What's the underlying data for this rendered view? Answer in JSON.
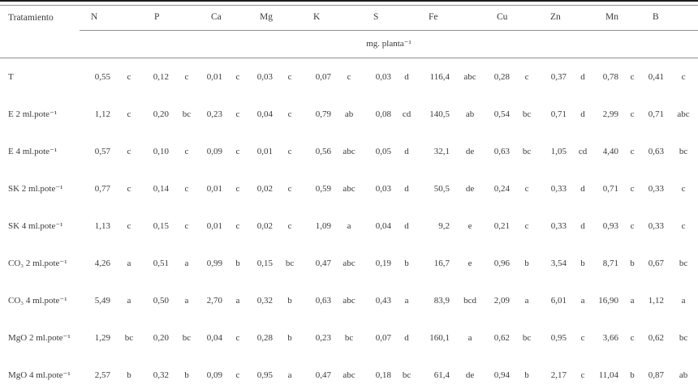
{
  "table": {
    "treatment_label": "Tratamiento",
    "nutrients": [
      "N",
      "P",
      "Ca",
      "Mg",
      "K",
      "S",
      "Fe",
      "Cu",
      "Zn",
      "Mn",
      "B"
    ],
    "unit_label": "mg. planta⁻¹",
    "rows": [
      {
        "label": "T",
        "cells": [
          [
            "0,55",
            "c"
          ],
          [
            "0,12",
            "c"
          ],
          [
            "0,01",
            "c"
          ],
          [
            "0,03",
            "c"
          ],
          [
            "0,07",
            "c"
          ],
          [
            "0,03",
            "d"
          ],
          [
            "116,4",
            "abc"
          ],
          [
            "0,28",
            "c"
          ],
          [
            "0,37",
            "d"
          ],
          [
            "0,78",
            "c"
          ],
          [
            "0,41",
            "c"
          ]
        ]
      },
      {
        "label": "E 2 ml.pote⁻¹",
        "cells": [
          [
            "1,12",
            "c"
          ],
          [
            "0,20",
            "bc"
          ],
          [
            "0,23",
            "c"
          ],
          [
            "0,04",
            "c"
          ],
          [
            "0,79",
            "ab"
          ],
          [
            "0,08",
            "cd"
          ],
          [
            "140,5",
            "ab"
          ],
          [
            "0,54",
            "bc"
          ],
          [
            "0,71",
            "d"
          ],
          [
            "2,99",
            "c"
          ],
          [
            "0,71",
            "abc"
          ]
        ]
      },
      {
        "label": "E 4 ml.pote⁻¹",
        "cells": [
          [
            "0,57",
            "c"
          ],
          [
            "0,10",
            "c"
          ],
          [
            "0,09",
            "c"
          ],
          [
            "0,01",
            "c"
          ],
          [
            "0,56",
            "abc"
          ],
          [
            "0,05",
            "d"
          ],
          [
            "32,1",
            "de"
          ],
          [
            "0,63",
            "bc"
          ],
          [
            "1,05",
            "cd"
          ],
          [
            "4,40",
            "c"
          ],
          [
            "0,63",
            "bc"
          ]
        ]
      },
      {
        "label": "SK 2 ml.pote⁻¹",
        "cells": [
          [
            "0,77",
            "c"
          ],
          [
            "0,14",
            "c"
          ],
          [
            "0,01",
            "c"
          ],
          [
            "0,02",
            "c"
          ],
          [
            "0,59",
            "abc"
          ],
          [
            "0,03",
            "d"
          ],
          [
            "50,5",
            "de"
          ],
          [
            "0,24",
            "c"
          ],
          [
            "0,33",
            "d"
          ],
          [
            "0,71",
            "c"
          ],
          [
            "0,33",
            "c"
          ]
        ]
      },
      {
        "label": "SK 4 ml.pote⁻¹",
        "cells": [
          [
            "1,13",
            "c"
          ],
          [
            "0,15",
            "c"
          ],
          [
            "0,01",
            "c"
          ],
          [
            "0,02",
            "c"
          ],
          [
            "1,09",
            "a"
          ],
          [
            "0,04",
            "d"
          ],
          [
            "9,2",
            "e"
          ],
          [
            "0,21",
            "c"
          ],
          [
            "0,33",
            "d"
          ],
          [
            "0,93",
            "c"
          ],
          [
            "0,33",
            "c"
          ]
        ]
      },
      {
        "label": "CO₃ 2 ml.pote⁻¹",
        "cells": [
          [
            "4,26",
            "a"
          ],
          [
            "0,51",
            "a"
          ],
          [
            "0,99",
            "b"
          ],
          [
            "0,15",
            "bc"
          ],
          [
            "0,47",
            "abc"
          ],
          [
            "0,19",
            "b"
          ],
          [
            "16,7",
            "e"
          ],
          [
            "0,96",
            "b"
          ],
          [
            "3,54",
            "b"
          ],
          [
            "8,71",
            "b"
          ],
          [
            "0,67",
            "bc"
          ]
        ]
      },
      {
        "label": "CO₃ 4 ml.pote⁻¹",
        "cells": [
          [
            "5,49",
            "a"
          ],
          [
            "0,50",
            "a"
          ],
          [
            "2,70",
            "a"
          ],
          [
            "0,32",
            "b"
          ],
          [
            "0,63",
            "abc"
          ],
          [
            "0,43",
            "a"
          ],
          [
            "83,9",
            "bcd"
          ],
          [
            "2,09",
            "a"
          ],
          [
            "6,01",
            "a"
          ],
          [
            "16,90",
            "a"
          ],
          [
            "1,12",
            "a"
          ]
        ]
      },
      {
        "label": "MgO 2 ml.pote⁻¹",
        "cells": [
          [
            "1,29",
            "bc"
          ],
          [
            "0,20",
            "bc"
          ],
          [
            "0,04",
            "c"
          ],
          [
            "0,28",
            "b"
          ],
          [
            "0,23",
            "bc"
          ],
          [
            "0,07",
            "d"
          ],
          [
            "160,1",
            "a"
          ],
          [
            "0,62",
            "bc"
          ],
          [
            "0,95",
            "c"
          ],
          [
            "3,66",
            "c"
          ],
          [
            "0,62",
            "bc"
          ]
        ]
      },
      {
        "label": "MgO 4 ml.pote⁻¹",
        "cells": [
          [
            "2,57",
            "b"
          ],
          [
            "0,32",
            "b"
          ],
          [
            "0,09",
            "c"
          ],
          [
            "0,95",
            "a"
          ],
          [
            "0,47",
            "abc"
          ],
          [
            "0,18",
            "bc"
          ],
          [
            "61,4",
            "de"
          ],
          [
            "0,94",
            "b"
          ],
          [
            "2,17",
            "c"
          ],
          [
            "11,04",
            "b"
          ],
          [
            "0,87",
            "ab"
          ]
        ]
      }
    ]
  }
}
